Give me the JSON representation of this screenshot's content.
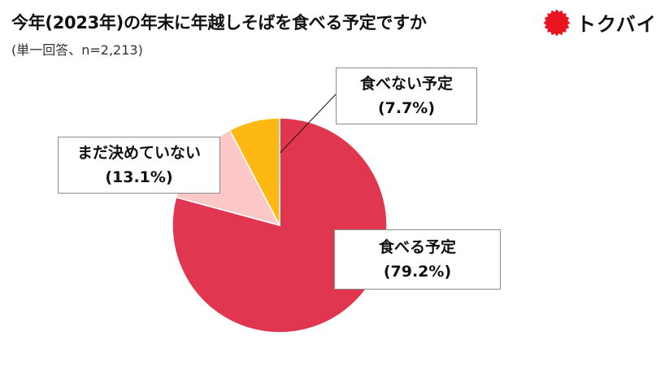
{
  "title": "今年(2023年)の年末に年越しそばを食べる予定ですか",
  "subtitle": "(単一回答、n=2,213)",
  "logo": {
    "text": "トクバイ",
    "icon": "red-seal-icon",
    "color": "#e8141e"
  },
  "chart_data": {
    "type": "pie",
    "title": "今年(2023年)の年末に年越しそばを食べる予定ですか",
    "subtitle": "(単一回答、n=2,213)",
    "slices": [
      {
        "label": "食べる予定",
        "value": 79.2,
        "value_label": "(79.2%)",
        "color": "#e03650"
      },
      {
        "label": "まだ決めていない",
        "value": 13.1,
        "value_label": "(13.1%)",
        "color": "#fbc7c7"
      },
      {
        "label": "食べない予定",
        "value": 7.7,
        "value_label": "(7.7%)",
        "color": "#fdb813"
      }
    ]
  }
}
